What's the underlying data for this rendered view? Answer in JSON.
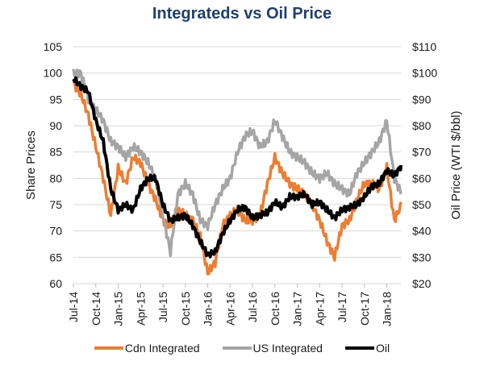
{
  "chart_data": {
    "type": "line",
    "title": "Integrateds vs Oil Price",
    "ylabel": "Share Prices",
    "y2label": "Oil Price (WTI $/bbl)",
    "xlabel": "",
    "ylim": [
      60,
      105
    ],
    "y2lim": [
      20,
      110
    ],
    "yticks": [
      "60",
      "65",
      "70",
      "75",
      "80",
      "85",
      "90",
      "95",
      "100",
      "105"
    ],
    "y2ticks": [
      "$20",
      "$30",
      "$40",
      "$50",
      "$60",
      "$70",
      "$80",
      "$90",
      "$100",
      "$110"
    ],
    "xticks": [
      "Jul-14",
      "Oct-14",
      "Jan-15",
      "Apr-15",
      "Jul-15",
      "Oct-15",
      "Jan-16",
      "Apr-16",
      "Jul-16",
      "Oct-16",
      "Jan-17",
      "Apr-17",
      "Jul-17",
      "Oct-17",
      "Jan-18"
    ],
    "grid": true,
    "legend_position": "bottom",
    "x_months": [
      "Jul-14",
      "Aug-14",
      "Sep-14",
      "Oct-14",
      "Nov-14",
      "Dec-14",
      "Jan-15",
      "Feb-15",
      "Mar-15",
      "Apr-15",
      "May-15",
      "Jun-15",
      "Jul-15",
      "Aug-15",
      "Sep-15",
      "Oct-15",
      "Nov-15",
      "Dec-15",
      "Jan-16",
      "Feb-16",
      "Mar-16",
      "Apr-16",
      "May-16",
      "Jun-16",
      "Jul-16",
      "Aug-16",
      "Sep-16",
      "Oct-16",
      "Nov-16",
      "Dec-16",
      "Jan-17",
      "Feb-17",
      "Mar-17",
      "Apr-17",
      "May-17",
      "Jun-17",
      "Jul-17",
      "Aug-17",
      "Sep-17",
      "Oct-17",
      "Nov-17",
      "Dec-17",
      "Jan-18",
      "Feb-18",
      "Mar-18"
    ],
    "series": [
      {
        "name": "Cdn Integrated",
        "axis": "left",
        "color": "#ed7d31",
        "values": [
          98,
          96,
          92,
          86,
          80,
          73,
          82,
          79,
          84,
          83,
          79,
          76,
          72,
          71,
          74,
          73,
          72,
          69,
          62,
          64,
          71,
          73,
          74,
          72,
          72,
          73,
          79,
          84,
          81,
          79,
          78,
          77,
          75,
          72,
          68,
          65,
          71,
          72,
          76,
          79,
          79,
          78,
          82,
          72,
          75
        ]
      },
      {
        "name": "US Integrated",
        "axis": "left",
        "color": "#a5a5a5",
        "values": [
          100,
          100,
          95,
          93,
          91,
          87,
          86,
          84,
          86,
          85,
          83,
          80,
          73,
          66,
          77,
          79,
          77,
          72,
          71,
          75,
          78,
          80,
          85,
          88,
          89,
          86,
          87,
          91,
          88,
          85,
          84,
          83,
          81,
          80,
          81,
          79,
          78,
          77,
          81,
          83,
          85,
          87,
          91,
          80,
          77
        ]
      },
      {
        "name": "Oil",
        "axis": "right",
        "color": "#000000",
        "values": [
          98,
          95,
          93,
          82,
          74,
          56,
          48,
          50,
          48,
          56,
          60,
          60,
          50,
          44,
          45,
          46,
          42,
          36,
          31,
          32,
          39,
          44,
          48,
          49,
          45,
          46,
          47,
          51,
          49,
          53,
          53,
          54,
          50,
          51,
          48,
          45,
          48,
          49,
          50,
          53,
          57,
          58,
          63,
          61,
          65
        ]
      }
    ]
  },
  "legend": {
    "items": [
      {
        "label": "Cdn Integrated",
        "color": "#ed7d31"
      },
      {
        "label": "US Integrated",
        "color": "#a5a5a5"
      },
      {
        "label": "Oil",
        "color": "#000000"
      }
    ]
  }
}
